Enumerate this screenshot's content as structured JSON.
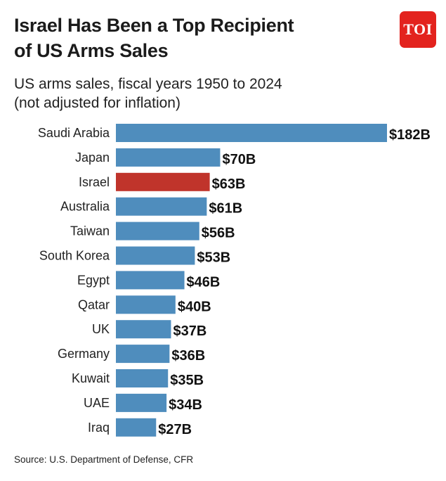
{
  "header": {
    "title_line1": "Israel Has Been a Top Recipient",
    "title_line2": "of US Arms Sales",
    "subtitle_line1": "US arms sales, fiscal years 1950 to 2024",
    "subtitle_line2": "(not adjusted for inflation)",
    "logo_text": "TOI"
  },
  "colors": {
    "bar_default": "#4f8dbd",
    "bar_highlight": "#c0342b",
    "logo_bg": "#e3231e"
  },
  "chart_data": {
    "type": "bar",
    "orientation": "horizontal",
    "title": "Israel Has Been a Top Recipient of US Arms Sales",
    "subtitle": "US arms sales, fiscal years 1950 to 2024 (not adjusted for inflation)",
    "categories": [
      "Saudi Arabia",
      "Japan",
      "Israel",
      "Australia",
      "Taiwan",
      "South Korea",
      "Egypt",
      "Qatar",
      "UK",
      "Germany",
      "Kuwait",
      "UAE",
      "Iraq"
    ],
    "values": [
      182,
      70,
      63,
      61,
      56,
      53,
      46,
      40,
      37,
      36,
      35,
      34,
      27
    ],
    "value_labels": [
      "$182B",
      "$70B",
      "$63B",
      "$61B",
      "$56B",
      "$53B",
      "$46B",
      "$40B",
      "$37B",
      "$36B",
      "$35B",
      "$34B",
      "$27B"
    ],
    "highlight": "Israel",
    "unit": "billion USD",
    "xlim": [
      0,
      182
    ]
  },
  "footer": {
    "source": "Source: U.S. Department of Defense, CFR"
  }
}
